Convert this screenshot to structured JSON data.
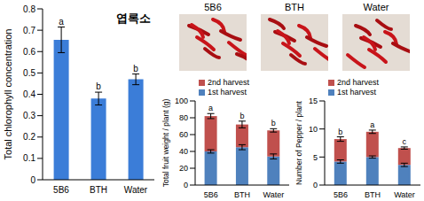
{
  "photos": {
    "labels": [
      "5B6",
      "BTH",
      "Water"
    ]
  },
  "chart_data": [
    {
      "type": "bar",
      "title": "엽록소",
      "ylabel": "Total chlorophyll concentration",
      "categories": [
        "5B6",
        "BTH",
        "Water"
      ],
      "values": [
        0.655,
        0.38,
        0.47
      ],
      "error": [
        0.06,
        0.03,
        0.025
      ],
      "annotations": [
        "a",
        "b",
        "b"
      ],
      "color": "#3b7dd8",
      "ylim": [
        0,
        0.8
      ],
      "yticks": [
        0,
        0.1,
        0.2,
        0.3,
        0.4,
        0.5,
        0.6,
        0.7,
        0.8
      ]
    },
    {
      "type": "bar",
      "stacked": true,
      "ylabel": "Total fruit weight / plant (g)",
      "categories": [
        "5B6",
        "BTH",
        "Water"
      ],
      "series": [
        {
          "name": "1st harvest",
          "color": "#4f81bd",
          "values": [
            40,
            45,
            34
          ],
          "error": [
            2,
            3,
            3
          ]
        },
        {
          "name": "2nd harvest",
          "color": "#c0504d",
          "values": [
            42,
            27,
            31
          ],
          "error": [
            3,
            4,
            2
          ]
        }
      ],
      "annotations": [
        "a",
        "b",
        "b"
      ],
      "legend": "top-left",
      "ylim": [
        0,
        100
      ],
      "yticks": [
        0,
        20,
        40,
        60,
        80,
        100
      ]
    },
    {
      "type": "bar",
      "stacked": true,
      "ylabel": "Number of Pepper / plant",
      "categories": [
        "5B6",
        "BTH",
        "Water"
      ],
      "series": [
        {
          "name": "1st harvest",
          "color": "#4f81bd",
          "values": [
            4.2,
            5.0,
            3.6
          ],
          "error": [
            0.3,
            0.2,
            0.3
          ]
        },
        {
          "name": "2nd harvest",
          "color": "#c0504d",
          "values": [
            4.0,
            4.5,
            3.0
          ],
          "error": [
            0.4,
            0.3,
            0.2
          ]
        }
      ],
      "annotations": [
        "b",
        "a",
        "c"
      ],
      "legend": "top-left",
      "ylim": [
        0,
        15
      ],
      "yticks": [
        0,
        5,
        10,
        15
      ]
    }
  ]
}
